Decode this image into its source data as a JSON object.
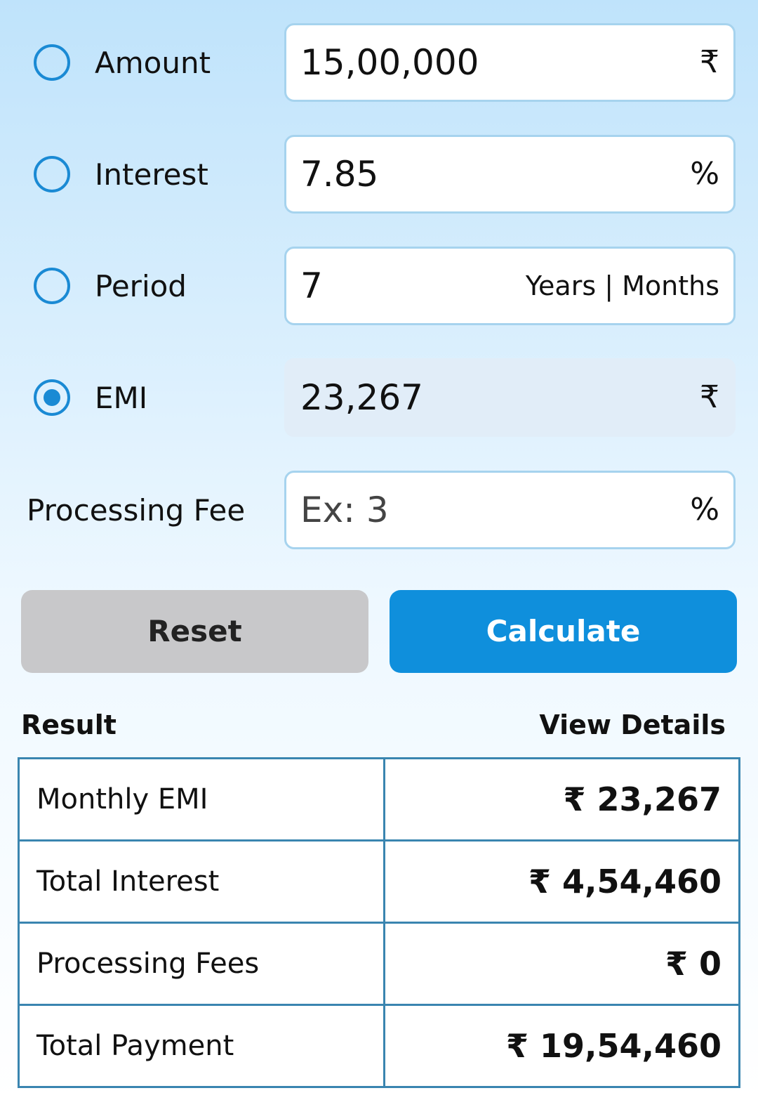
{
  "form": {
    "fields": [
      {
        "label": "Amount",
        "value": "15,00,000",
        "unit": "₹"
      },
      {
        "label": "Interest",
        "value": "7.85",
        "unit": "%"
      },
      {
        "label": "Period",
        "value": "7",
        "unit": "Years | Months"
      },
      {
        "label": "EMI",
        "value": "23,267",
        "unit": "₹"
      }
    ],
    "processing_fee": {
      "label": "Processing Fee",
      "placeholder": "Ex: 3",
      "unit": "%"
    },
    "buttons": {
      "reset": "Reset",
      "calculate": "Calculate"
    }
  },
  "result": {
    "title": "Result",
    "link": "View Details",
    "rows": [
      [
        "Monthly EMI",
        "₹ 23,267"
      ],
      [
        "Total Interest",
        "₹ 4,54,460"
      ],
      [
        "Processing Fees",
        "₹ 0"
      ],
      [
        "Total Payment",
        "₹ 19,54,460"
      ]
    ]
  }
}
